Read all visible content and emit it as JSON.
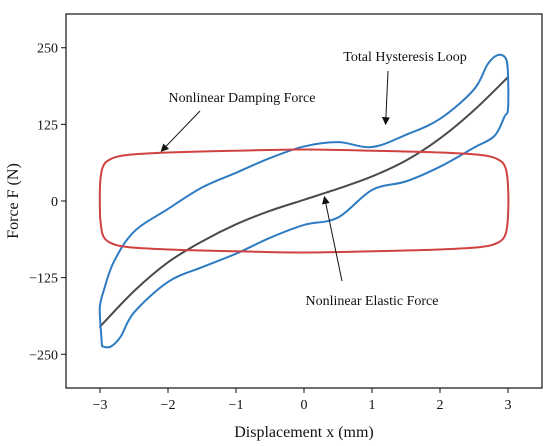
{
  "colors": {
    "axis": "#111111",
    "hysteresis": "#2e7bc4",
    "elastic": "#4a4a4a",
    "damping": "#d04242"
  },
  "chart_data": {
    "type": "line",
    "title": "",
    "xlabel": "Displacement x (mm)",
    "ylabel": "Force F (N)",
    "xlim": [
      -3.5,
      3.5
    ],
    "ylim": [
      -305,
      305
    ],
    "xticks": [
      -3,
      -2,
      -1,
      0,
      1,
      2,
      3
    ],
    "xtick_labels": [
      "−3",
      "−2",
      "−1",
      "0",
      "1",
      "2",
      "3"
    ],
    "yticks": [
      -250,
      -125,
      0,
      125,
      250
    ],
    "ytick_labels": [
      "−250",
      "−125",
      "0",
      "125",
      "250"
    ],
    "grid": false,
    "legend": "none",
    "amplitude_mm": 3,
    "series": [
      {
        "name": "Nonlinear Elastic Force",
        "color_key": "elastic",
        "x": [
          -3,
          -2.5,
          -2,
          -1.5,
          -1,
          -0.5,
          0,
          0.5,
          1,
          1.5,
          2,
          2.5,
          3
        ],
        "y": [
          -205,
          -147,
          -100,
          -66,
          -38,
          -16,
          2,
          20,
          40,
          66,
          102,
          148,
          202
        ]
      },
      {
        "name": "Total Hysteresis Loop",
        "color_key": "hysteresis",
        "x": [
          -2.97,
          -2.85,
          -2.7,
          -2.5,
          -2,
          -1.5,
          -1,
          -0.5,
          0,
          0.5,
          1,
          1.5,
          2,
          2.5,
          2.8,
          2.95,
          3,
          3,
          2.97,
          2.85,
          2.7,
          2.5,
          2,
          1.5,
          1,
          0.5,
          0,
          -0.5,
          -1,
          -1.5,
          -2,
          -2.5,
          -2.8,
          -2.95,
          -3,
          -3,
          -2.97
        ],
        "y": [
          -237,
          -238,
          -222,
          -182,
          -132,
          -108,
          -86,
          -60,
          -39,
          -27,
          18,
          32,
          56,
          87,
          106,
          138,
          150,
          205,
          232,
          238,
          223,
          182,
          134,
          108,
          88,
          96,
          89,
          70,
          46,
          22,
          -13,
          -50,
          -100,
          -148,
          -170,
          -190,
          -237
        ]
      },
      {
        "name": "Nonlinear Damping Force",
        "color_key": "damping",
        "x": [
          -3,
          -2.96,
          -2.85,
          -2.6,
          -2,
          -1,
          0,
          1,
          2,
          2.6,
          2.85,
          2.96,
          3,
          3,
          2.96,
          2.85,
          2.6,
          2,
          1,
          0,
          -1,
          -2,
          -2.6,
          -2.85,
          -2.96,
          -3,
          -3
        ],
        "y": [
          -25,
          -55,
          -68,
          -75,
          -79,
          -82,
          -84,
          -82,
          -79,
          -75,
          -68,
          -55,
          -25,
          25,
          55,
          68,
          75,
          79,
          82,
          84,
          82,
          79,
          75,
          68,
          55,
          25,
          -25
        ]
      }
    ],
    "annotations": [
      {
        "text": "Total Hysteresis Loop",
        "target": [
          1.2,
          125
        ],
        "label_anchor": "right"
      },
      {
        "text": "Nonlinear Damping Force",
        "target": [
          -2.1,
          81
        ],
        "label_anchor": "left"
      },
      {
        "text": "Nonlinear Elastic Force",
        "target": [
          0.3,
          7
        ],
        "label_anchor": "left"
      }
    ]
  }
}
